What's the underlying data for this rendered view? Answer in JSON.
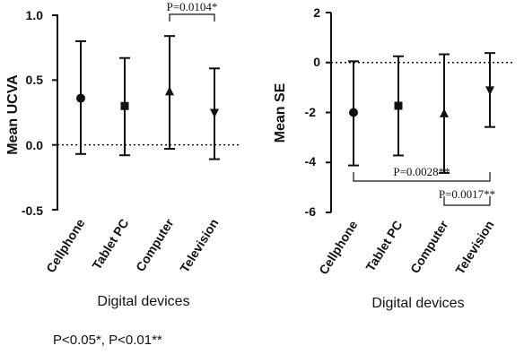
{
  "chart_data": [
    {
      "type": "scatter",
      "xlabel": "Digital devices",
      "ylabel": "Mean UCVA",
      "ylim": [
        -0.5,
        1.0
      ],
      "yticks": [
        "1.0",
        "0.5",
        "0.0",
        "-0.5"
      ],
      "categories": [
        "Cellphone",
        "Tablet PC",
        "Computer",
        "Television"
      ],
      "series": [
        {
          "markers": [
            "circle",
            "square",
            "triangle-up",
            "triangle-down"
          ],
          "values": [
            0.36,
            0.3,
            0.41,
            0.25
          ],
          "upper": [
            0.8,
            0.67,
            0.84,
            0.59
          ],
          "lower": [
            -0.07,
            -0.08,
            -0.03,
            -0.11
          ]
        }
      ],
      "reference_line": 0,
      "annotations": [
        {
          "text": "P=0.0104*",
          "from": "Computer",
          "to": "Television"
        }
      ]
    },
    {
      "type": "scatter",
      "xlabel": "Digital devices",
      "ylabel": "Mean SE",
      "ylim": [
        -6,
        2
      ],
      "yticks": [
        "2",
        "0",
        "-2",
        "-4",
        "-6"
      ],
      "categories": [
        "Cellphone",
        "Tablet PC",
        "Computer",
        "Television"
      ],
      "series": [
        {
          "markers": [
            "circle",
            "square",
            "triangle-up",
            "triangle-down"
          ],
          "values": [
            -2.0,
            -1.73,
            -2.05,
            -1.1
          ],
          "upper": [
            0.05,
            0.25,
            0.33,
            0.38
          ],
          "lower": [
            -4.12,
            -3.72,
            -4.42,
            -2.58
          ]
        }
      ],
      "reference_line": 0,
      "annotations": [
        {
          "text": "P=0.0028**",
          "from": "Cellphone",
          "to": "Television"
        },
        {
          "text": "P=0.0017**",
          "from": "Computer",
          "to": "Television"
        }
      ]
    }
  ],
  "footnote": "P<0.05*, P<0.01**"
}
